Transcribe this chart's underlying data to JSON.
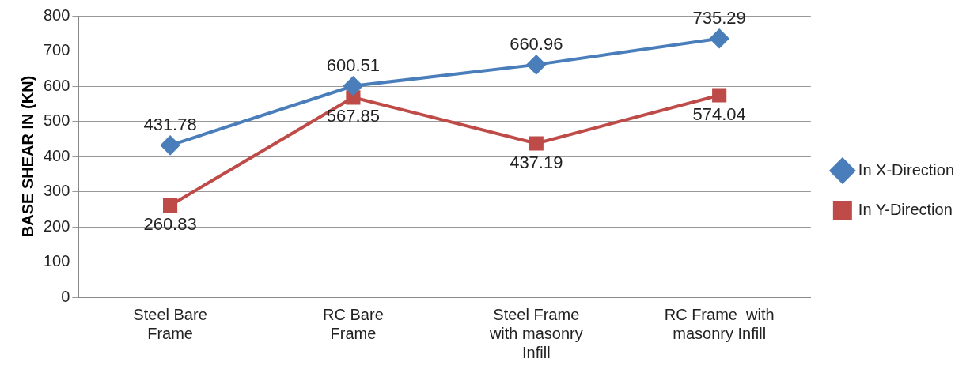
{
  "chart_data": {
    "type": "line",
    "ylabel": "BASE SHEAR IN (KN)",
    "categories": [
      "Steel Bare Frame",
      "RC Bare Frame",
      "Steel Frame with masonry Infill",
      "RC Frame  with masonry Infill"
    ],
    "series": [
      {
        "name": "In X-Direction",
        "color": "#4a7ebb",
        "marker": "diamond",
        "values": [
          431.78,
          600.51,
          660.96,
          735.29
        ]
      },
      {
        "name": "In Y-Direction",
        "color": "#be4b48",
        "marker": "square",
        "values": [
          260.83,
          567.85,
          437.19,
          574.04
        ]
      }
    ],
    "ylim": [
      0,
      800
    ],
    "yticks": [
      0,
      100,
      200,
      300,
      400,
      500,
      600,
      700,
      800
    ],
    "grid": "y",
    "legend": "right",
    "data_labels": true,
    "line_style": "solid"
  }
}
